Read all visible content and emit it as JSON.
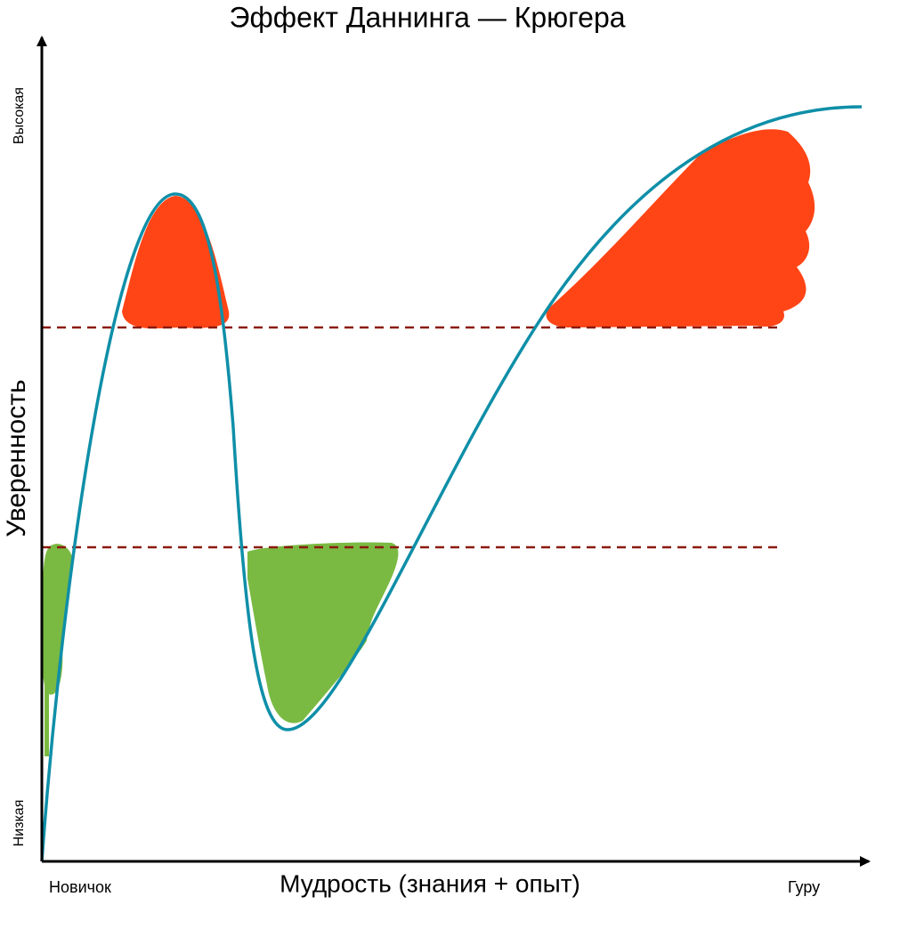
{
  "title": "Эффект Даннинга — Крюгера",
  "y_axis": {
    "label": "Уверенность",
    "high": "Высокая",
    "low": "Низкая"
  },
  "x_axis": {
    "label": "Мудрость (знания + опыт)",
    "start": "Новичок",
    "end": "Гуру"
  }
}
